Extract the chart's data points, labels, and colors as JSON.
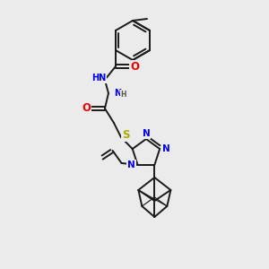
{
  "background_color": "#ebebeb",
  "figsize": [
    3.0,
    3.0
  ],
  "dpi": 100,
  "bond_color": "#1a1a1a",
  "bond_width": 1.4,
  "atom_colors": {
    "N": "#0000ee",
    "O": "#ee0000",
    "S": "#aaaa00",
    "C": "#1a1a1a",
    "H": "#555555"
  },
  "font_size": 7.5
}
